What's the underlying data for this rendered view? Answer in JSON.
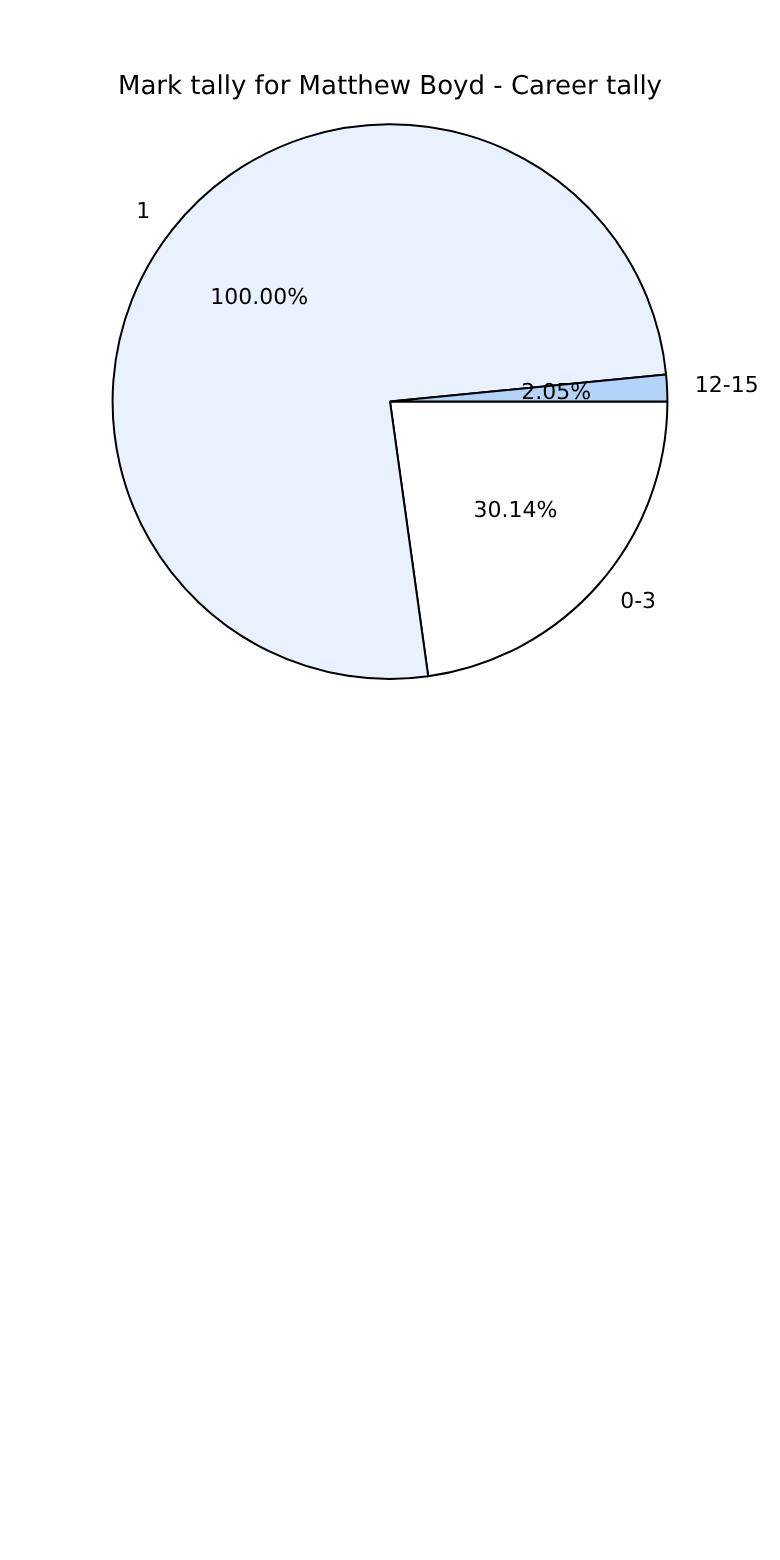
{
  "chart_data": {
    "type": "pie",
    "title": "Mark tally for Matthew Boyd - Career tally",
    "categories": [
      "0-3",
      "1",
      "12-15"
    ],
    "values": [
      30.14,
      100.0,
      2.05
    ],
    "value_labels": [
      "30.14%",
      "100.00%",
      "2.05%"
    ],
    "colors": [
      "#ffffff",
      "#eaf1fe",
      "#b3d3fb"
    ],
    "legend": false
  }
}
